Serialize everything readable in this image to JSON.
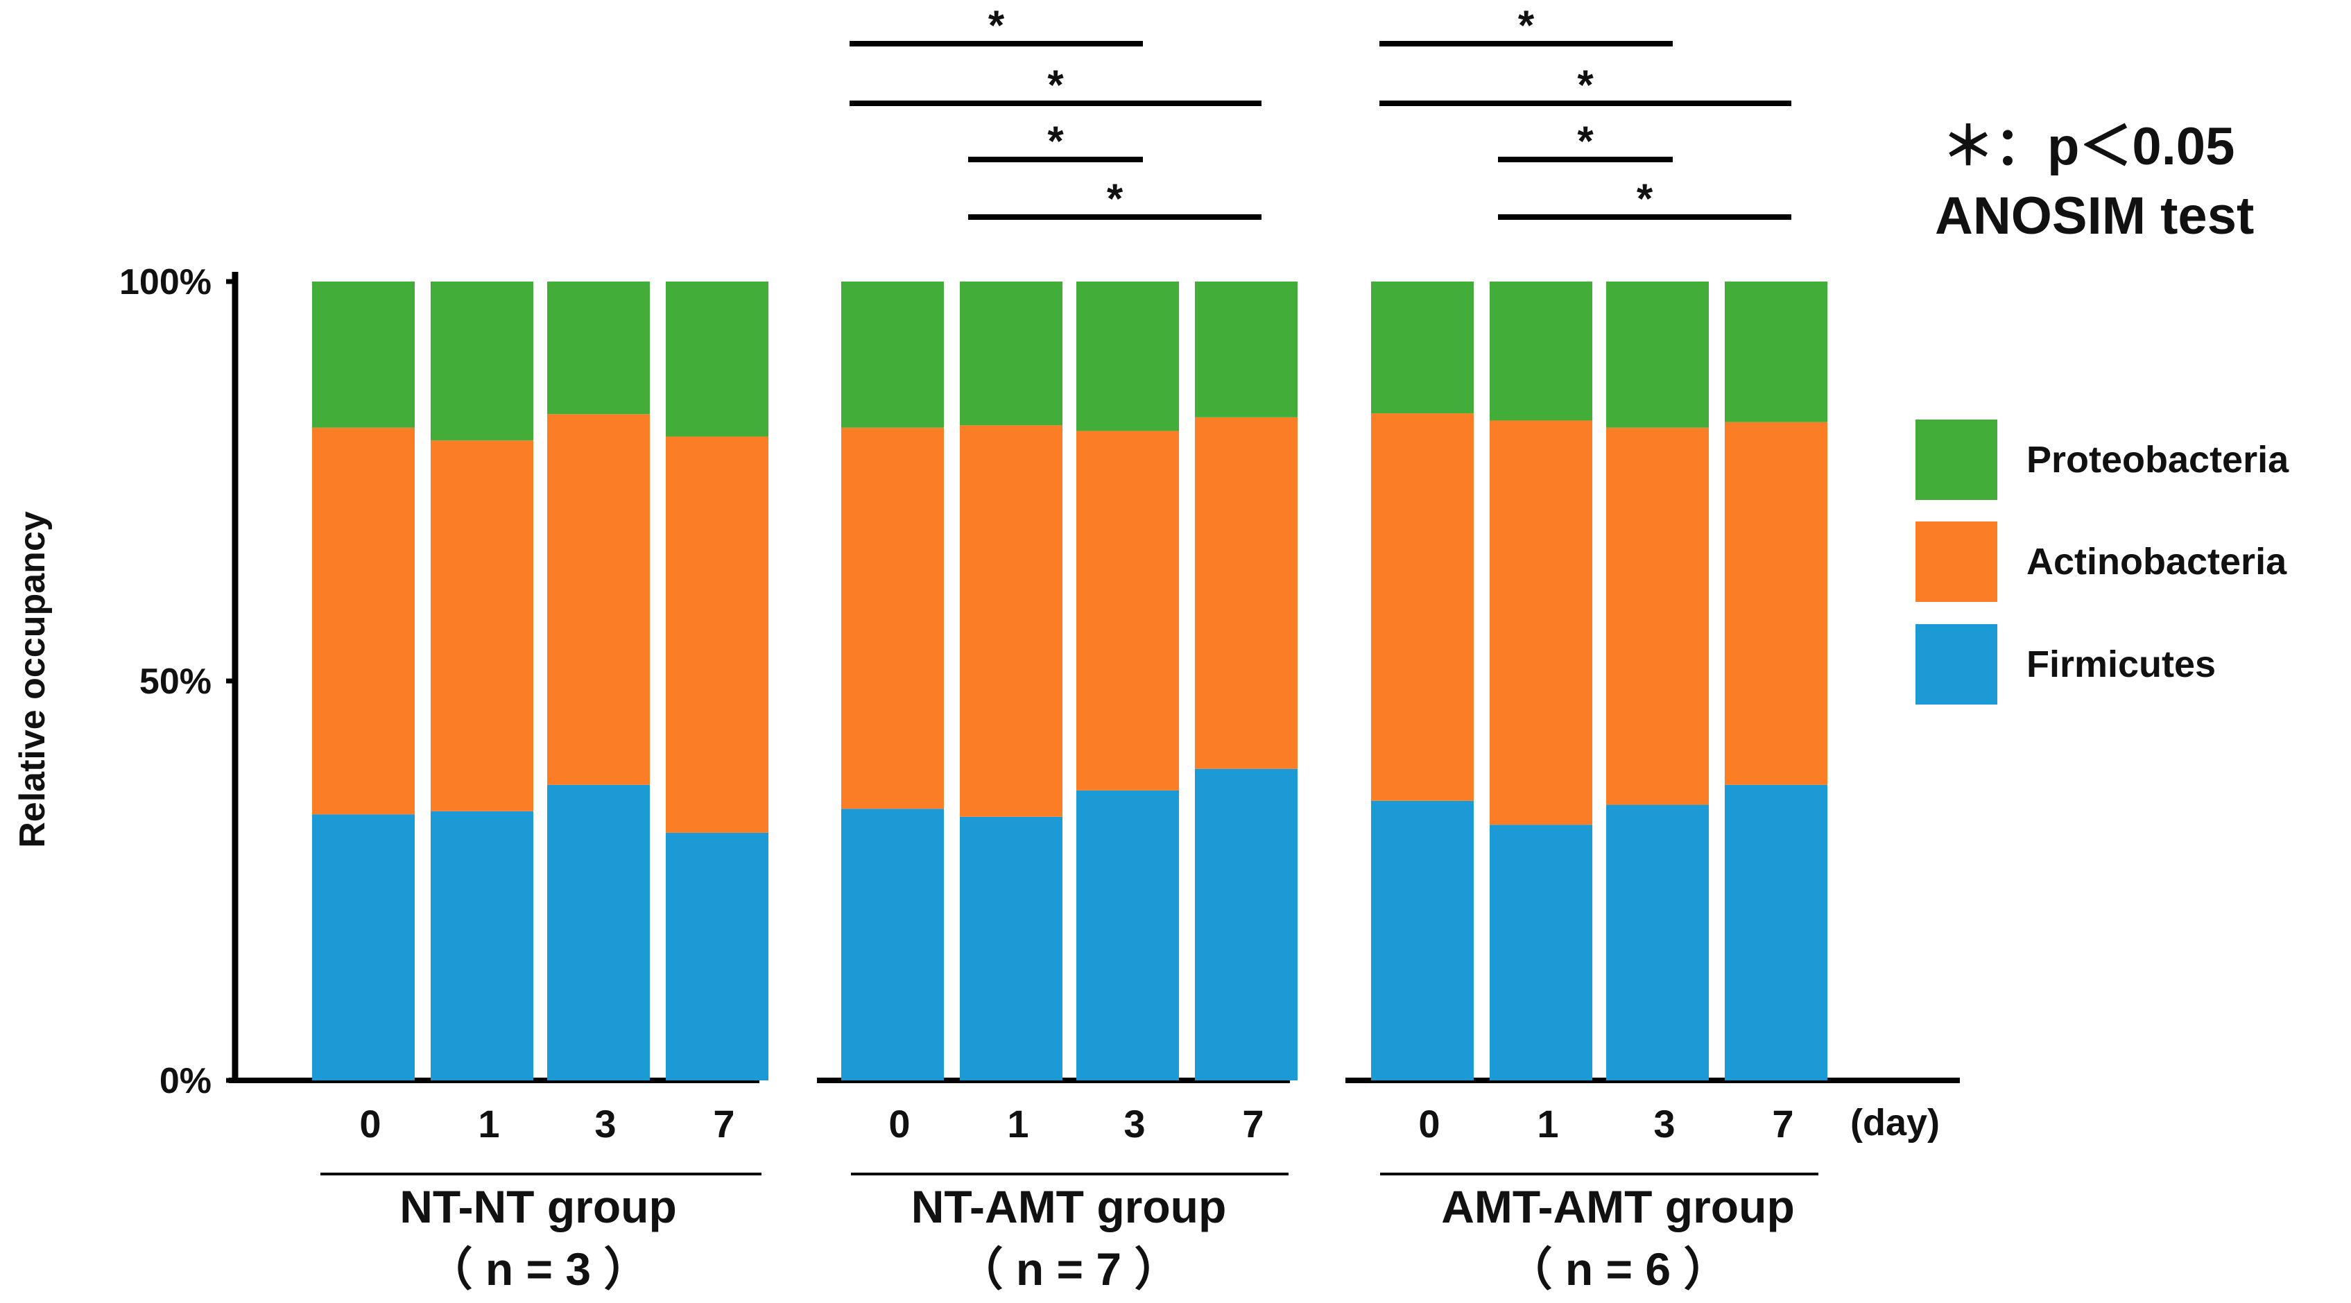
{
  "chart_data": {
    "type": "bar",
    "stacked": true,
    "ylabel": "Relative occupancy",
    "yticks": [
      "0%",
      "50%",
      "100%"
    ],
    "ylim": [
      0,
      100
    ],
    "x_unit": "(day)",
    "annotation": {
      "line1": "＊：p＜0.05",
      "line2": "ANOSIM test"
    },
    "series_order": [
      "Firmicutes",
      "Actinobacteria",
      "Proteobacteria"
    ],
    "legend": [
      {
        "name": "Proteobacteria",
        "color": "#43ad3a"
      },
      {
        "name": "Actinobacteria",
        "color": "#fb7d26"
      },
      {
        "name": "Firmicutes",
        "color": "#1c9ad6"
      }
    ],
    "groups": [
      {
        "name": "NT-NT group",
        "n_label": "（ n = 3 ）",
        "categories": [
          "0",
          "1",
          "3",
          "7"
        ],
        "series": [
          {
            "name": "Firmicutes",
            "values": [
              33.3,
              33.7,
              37.0,
              31.0
            ]
          },
          {
            "name": "Actinobacteria",
            "values": [
              48.4,
              46.4,
              46.4,
              49.6
            ]
          },
          {
            "name": "Proteobacteria",
            "values": [
              18.3,
              19.9,
              16.6,
              19.4
            ]
          }
        ],
        "significance": []
      },
      {
        "name": "NT-AMT group",
        "n_label": "（ n = 7 ）",
        "categories": [
          "0",
          "1",
          "3",
          "7"
        ],
        "series": [
          {
            "name": "Firmicutes",
            "values": [
              34.0,
              33.0,
              36.3,
              39.0
            ]
          },
          {
            "name": "Actinobacteria",
            "values": [
              47.7,
              49.0,
              45.0,
              44.0
            ]
          },
          {
            "name": "Proteobacteria",
            "values": [
              18.3,
              18.0,
              18.7,
              17.0
            ]
          }
        ],
        "significance": [
          {
            "from": "0",
            "to": "3",
            "label": "*"
          },
          {
            "from": "0",
            "to": "7",
            "label": "*"
          },
          {
            "from": "1",
            "to": "3",
            "label": "*"
          },
          {
            "from": "1",
            "to": "7",
            "label": "*"
          }
        ]
      },
      {
        "name": "AMT-AMT group",
        "n_label": "（ n = 6 ）",
        "categories": [
          "0",
          "1",
          "3",
          "7"
        ],
        "series": [
          {
            "name": "Firmicutes",
            "values": [
              35.0,
              32.0,
              34.5,
              37.0
            ]
          },
          {
            "name": "Actinobacteria",
            "values": [
              48.5,
              50.6,
              47.2,
              45.4
            ]
          },
          {
            "name": "Proteobacteria",
            "values": [
              16.5,
              17.4,
              18.3,
              17.6
            ]
          }
        ],
        "significance": [
          {
            "from": "0",
            "to": "3",
            "label": "*"
          },
          {
            "from": "0",
            "to": "7",
            "label": "*"
          },
          {
            "from": "1",
            "to": "3",
            "label": "*"
          },
          {
            "from": "1",
            "to": "7",
            "label": "*"
          }
        ]
      }
    ]
  }
}
